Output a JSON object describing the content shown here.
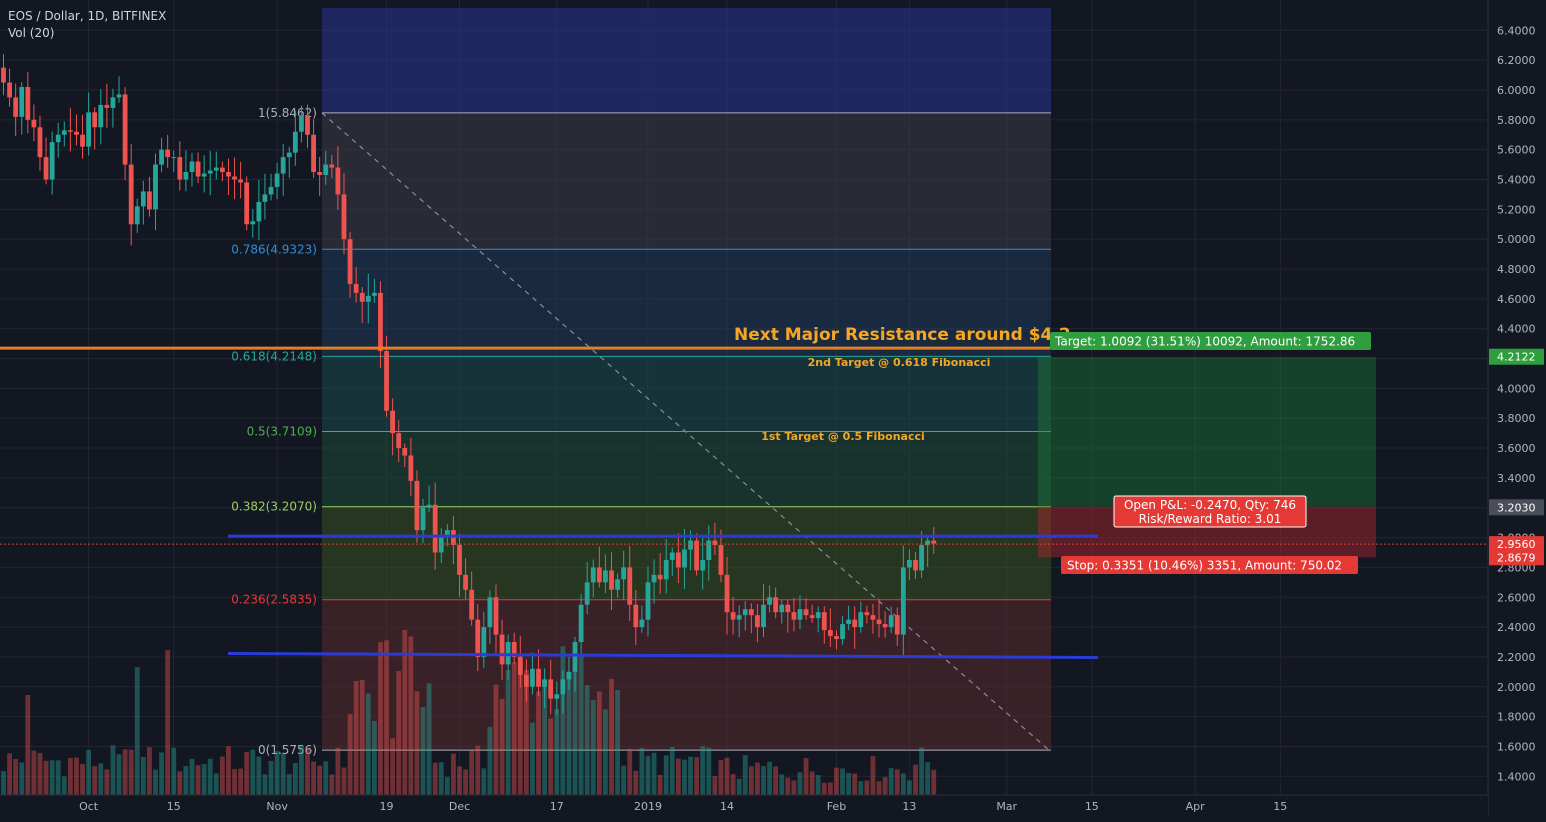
{
  "header": {
    "title": "EOS / Dollar, 1D, BITFINEX",
    "indicator": "Vol (20)"
  },
  "chart_data": {
    "type": "candlestick",
    "symbol": "EOS / Dollar",
    "interval": "1D",
    "exchange": "BITFINEX",
    "ylim": [
      1.3,
      6.55
    ],
    "y_ticks": [
      "6.4000",
      "6.2000",
      "6.0000",
      "5.8000",
      "5.6000",
      "5.4000",
      "5.2000",
      "5.0000",
      "4.8000",
      "4.6000",
      "4.4000",
      "4.2000",
      "4.0000",
      "3.8000",
      "3.6000",
      "3.4000",
      "3.2000",
      "3.0000",
      "2.8000",
      "2.6000",
      "2.4000",
      "2.2000",
      "2.0000",
      "1.8000",
      "1.6000",
      "1.4000"
    ],
    "x_ticks": [
      {
        "label": "Oct",
        "day": 14
      },
      {
        "label": "15",
        "day": 28
      },
      {
        "label": "Nov",
        "day": 45
      },
      {
        "label": "19",
        "day": 63
      },
      {
        "label": "Dec",
        "day": 75
      },
      {
        "label": "17",
        "day": 91
      },
      {
        "label": "2019",
        "day": 106
      },
      {
        "label": "14",
        "day": 119
      },
      {
        "label": "Feb",
        "day": 137
      },
      {
        "label": "13",
        "day": 149
      },
      {
        "label": "Mar",
        "day": 165
      },
      {
        "label": "15",
        "day": 179
      },
      {
        "label": "Apr",
        "day": 196
      },
      {
        "label": "15",
        "day": 210
      }
    ],
    "closes": [
      6.05,
      5.95,
      5.82,
      6.02,
      5.8,
      5.75,
      5.55,
      5.4,
      5.65,
      5.7,
      5.73,
      5.72,
      5.7,
      5.62,
      5.85,
      5.75,
      5.9,
      5.88,
      5.95,
      5.97,
      5.5,
      5.1,
      5.22,
      5.32,
      5.2,
      5.5,
      5.6,
      5.55,
      5.55,
      5.4,
      5.45,
      5.52,
      5.42,
      5.44,
      5.46,
      5.48,
      5.45,
      5.42,
      5.4,
      5.38,
      5.1,
      5.12,
      5.25,
      5.3,
      5.35,
      5.44,
      5.55,
      5.58,
      5.72,
      5.83,
      5.7,
      5.45,
      5.43,
      5.5,
      5.48,
      5.3,
      5.0,
      4.7,
      4.64,
      4.58,
      4.62,
      4.64,
      4.25,
      3.85,
      3.7,
      3.6,
      3.55,
      3.38,
      3.05,
      3.2,
      3.22,
      2.9,
      3.0,
      3.05,
      2.95,
      2.75,
      2.65,
      2.45,
      2.2,
      2.4,
      2.6,
      2.35,
      2.15,
      2.3,
      2.2,
      2.08,
      2.0,
      2.12,
      2.0,
      2.05,
      1.92,
      1.95,
      2.05,
      2.1,
      2.3,
      2.55,
      2.7,
      2.8,
      2.7,
      2.78,
      2.65,
      2.72,
      2.8,
      2.55,
      2.4,
      2.45,
      2.7,
      2.75,
      2.72,
      2.85,
      2.9,
      2.8,
      2.92,
      2.98,
      2.78,
      2.85,
      2.98,
      2.95,
      2.75,
      2.5,
      2.45,
      2.48,
      2.52,
      2.48,
      2.4,
      2.55,
      2.6,
      2.5,
      2.55,
      2.5,
      2.45,
      2.52,
      2.48,
      2.46,
      2.5,
      2.38,
      2.34,
      2.32,
      2.42,
      2.45,
      2.4,
      2.5,
      2.48,
      2.45,
      2.42,
      2.4,
      2.48,
      2.35,
      2.8,
      2.85,
      2.78,
      2.95,
      2.98,
      2.96
    ],
    "fibonacci": {
      "levels": [
        {
          "ratio": "1",
          "price": 5.8462,
          "label": "1(5.8462)",
          "color": "#aab0b8"
        },
        {
          "ratio": "0.786",
          "price": 4.9323,
          "label": "0.786(4.9323)",
          "color": "#2e8fd6"
        },
        {
          "ratio": "0.618",
          "price": 4.2148,
          "label": "0.618(4.2148)",
          "color": "#26a69a"
        },
        {
          "ratio": "0.5",
          "price": 3.7109,
          "label": "0.5(3.7109)",
          "color": "#4caf50"
        },
        {
          "ratio": "0.382",
          "price": 3.207,
          "label": "0.382(3.2070)",
          "color": "#9ccc65"
        },
        {
          "ratio": "0.236",
          "price": 2.5835,
          "label": "0.236(2.5835)",
          "color": "#e53935"
        },
        {
          "ratio": "0",
          "price": 1.5756,
          "label": "0(1.5756)",
          "color": "#aab0b8"
        }
      ],
      "top_band_price": 6.55
    },
    "horizontal_lines": [
      {
        "price": 4.27,
        "color": "#e67e22"
      },
      {
        "price": 3.01,
        "color": "#2a3bd8"
      },
      {
        "price": 2.21,
        "color": "#2a3bd8"
      }
    ],
    "annotations": [
      {
        "text": "Next Major Resistance around $4.2",
        "color": "#f5a623"
      },
      {
        "text": "2nd Target @ 0.618 Fibonacci",
        "color": "#f5a623"
      },
      {
        "text": "1st Target @ 0.5 Fibonacci",
        "color": "#f5a623"
      }
    ],
    "position": {
      "entry": 2.956,
      "target_price": 4.2122,
      "stop_price": 2.8679,
      "target_label": "Target: 1.0092 (31.51%) 10092, Amount: 1752.86",
      "stop_label": "Stop: 0.3351 (10.46%) 3351, Amount: 750.02",
      "pnl_label": "Open P&L: -0.2470, Qty: 746",
      "rr_label": "Risk/Reward Ratio: 3.01",
      "upper_box_top": 4.21,
      "upper_box_bottom": 3.207,
      "lower_box_top": 3.207,
      "lower_box_bottom": 2.868
    },
    "price_tags": [
      {
        "value": "4.2122",
        "price": 4.2122,
        "color": "#2e9e3e"
      },
      {
        "value": "3.2030",
        "price": 3.203,
        "color": "#4a4e59"
      },
      {
        "value": "2.9560",
        "price": 2.956,
        "color": "#e53935"
      },
      {
        "value": "2.8679",
        "price": 2.8679,
        "color": "#e53935"
      }
    ],
    "colors": {
      "up": "#26a69a",
      "down": "#ef5350",
      "background": "#131722",
      "grid": "#232632",
      "text": "#b2b5be"
    }
  }
}
